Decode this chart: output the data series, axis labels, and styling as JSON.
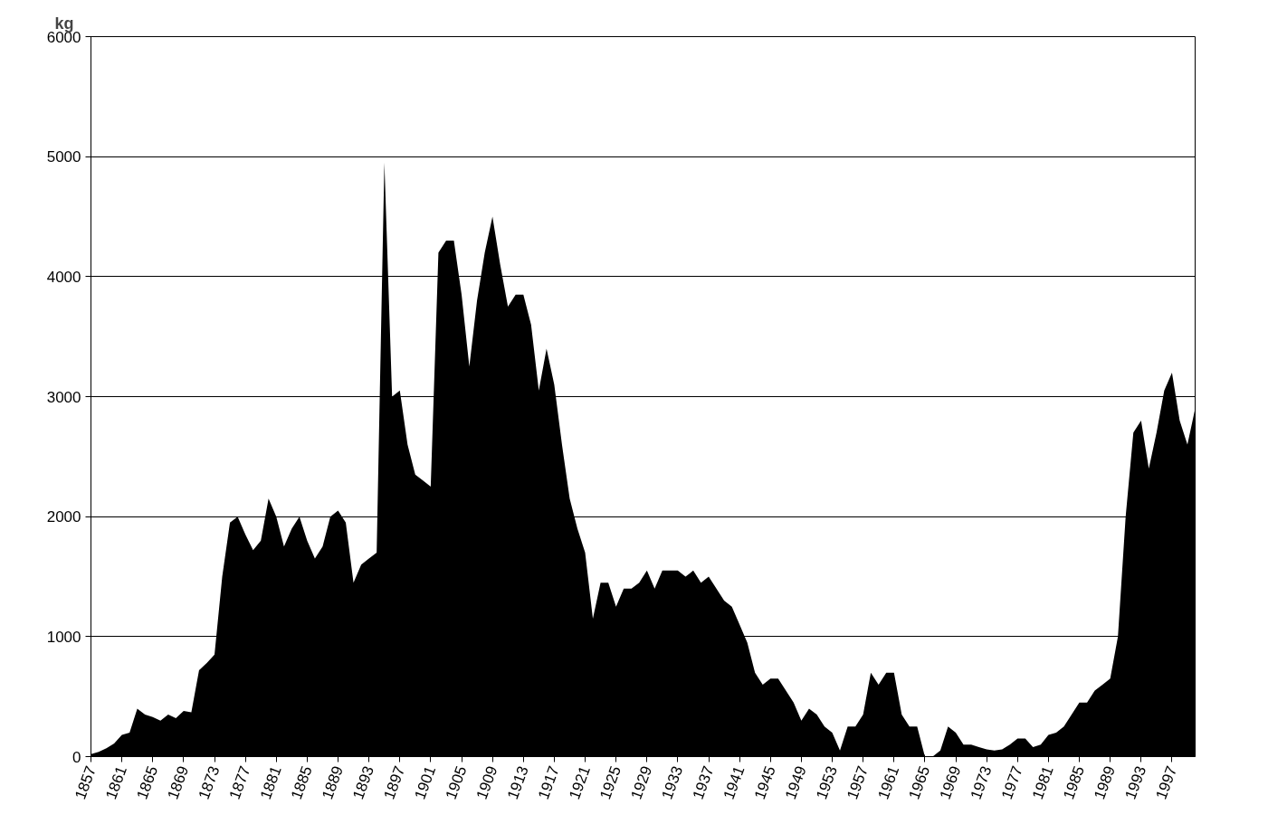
{
  "chart_data": {
    "type": "area",
    "ylabel": "kg",
    "x": [
      1857,
      1858,
      1859,
      1860,
      1861,
      1862,
      1863,
      1864,
      1865,
      1866,
      1867,
      1868,
      1869,
      1870,
      1871,
      1872,
      1873,
      1874,
      1875,
      1876,
      1877,
      1878,
      1879,
      1880,
      1881,
      1882,
      1883,
      1884,
      1885,
      1886,
      1887,
      1888,
      1889,
      1890,
      1891,
      1892,
      1893,
      1894,
      1895,
      1896,
      1897,
      1898,
      1899,
      1900,
      1901,
      1902,
      1903,
      1904,
      1905,
      1906,
      1907,
      1908,
      1909,
      1910,
      1911,
      1912,
      1913,
      1914,
      1915,
      1916,
      1917,
      1918,
      1919,
      1920,
      1921,
      1922,
      1923,
      1924,
      1925,
      1926,
      1927,
      1928,
      1929,
      1930,
      1931,
      1932,
      1933,
      1934,
      1935,
      1936,
      1937,
      1938,
      1939,
      1940,
      1941,
      1942,
      1943,
      1944,
      1945,
      1946,
      1947,
      1948,
      1949,
      1950,
      1951,
      1952,
      1953,
      1954,
      1955,
      1956,
      1957,
      1958,
      1959,
      1960,
      1961,
      1962,
      1963,
      1964,
      1965,
      1966,
      1967,
      1968,
      1969,
      1970,
      1971,
      1972,
      1973,
      1974,
      1975,
      1976,
      1977,
      1978,
      1979,
      1980,
      1981,
      1982,
      1983,
      1984,
      1985,
      1986,
      1987,
      1988,
      1989,
      1990,
      1991,
      1992,
      1993,
      1994,
      1995,
      1996,
      1997,
      1998,
      1999,
      2000
    ],
    "values": [
      20,
      40,
      70,
      110,
      180,
      200,
      400,
      350,
      330,
      300,
      350,
      320,
      380,
      370,
      720,
      780,
      850,
      1500,
      1950,
      2000,
      1850,
      1720,
      1800,
      2150,
      2000,
      1750,
      1900,
      2000,
      1800,
      1650,
      1750,
      2000,
      2050,
      1950,
      1450,
      1600,
      1650,
      1700,
      4950,
      3000,
      3050,
      2600,
      2350,
      2300,
      2250,
      4200,
      4300,
      4300,
      3850,
      3250,
      3800,
      4200,
      4500,
      4100,
      3750,
      3850,
      3850,
      3600,
      3050,
      3400,
      3100,
      2600,
      2150,
      1900,
      1700,
      1150,
      1450,
      1450,
      1250,
      1400,
      1400,
      1450,
      1550,
      1400,
      1550,
      1550,
      1550,
      1500,
      1550,
      1450,
      1500,
      1400,
      1300,
      1250,
      1100,
      950,
      700,
      600,
      650,
      650,
      550,
      450,
      300,
      400,
      350,
      250,
      200,
      50,
      250,
      250,
      350,
      700,
      600,
      700,
      700,
      350,
      250,
      250,
      0,
      0,
      50,
      250,
      200,
      100,
      100,
      80,
      60,
      50,
      60,
      100,
      150,
      150,
      80,
      100,
      180,
      200,
      250,
      350,
      450,
      450,
      550,
      600,
      650,
      1000,
      2000,
      2700,
      2800,
      2400,
      2700,
      3050,
      3200,
      2800,
      2600,
      2900
    ],
    "color": "#000000",
    "xlim": [
      1857,
      2000
    ],
    "xticks": [
      1857,
      1861,
      1865,
      1869,
      1873,
      1877,
      1881,
      1885,
      1889,
      1893,
      1897,
      1901,
      1905,
      1909,
      1913,
      1917,
      1921,
      1925,
      1929,
      1933,
      1937,
      1941,
      1945,
      1949,
      1953,
      1957,
      1961,
      1965,
      1969,
      1973,
      1977,
      1981,
      1985,
      1989,
      1993,
      1997
    ],
    "ylim": [
      0,
      6000
    ],
    "yticks": [
      0,
      1000,
      2000,
      3000,
      4000,
      5000,
      6000
    ],
    "grid": "y"
  }
}
